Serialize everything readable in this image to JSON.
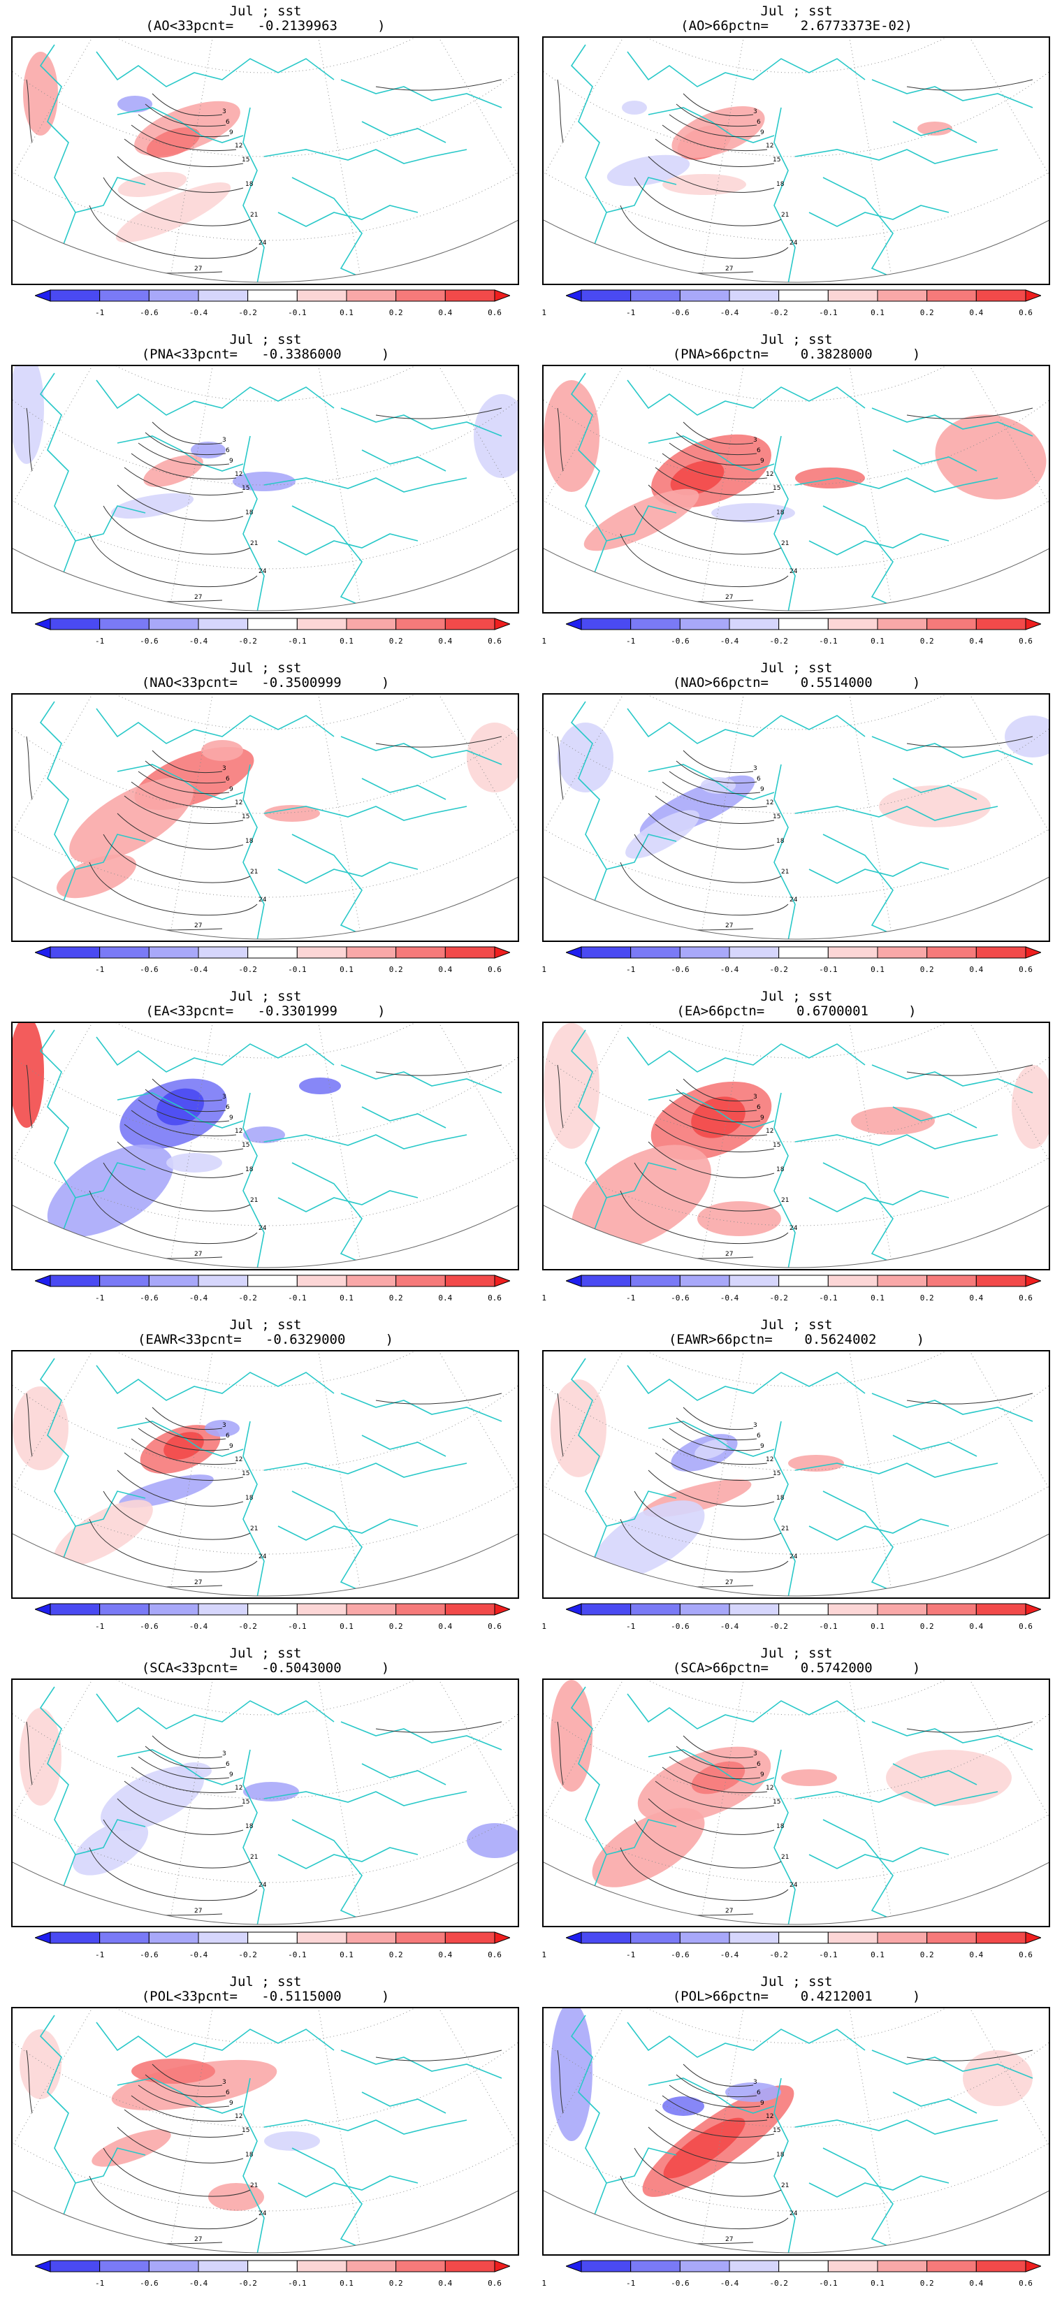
{
  "colorbar": {
    "labels": [
      "-1",
      "-0.6",
      "-0.4",
      "-0.2",
      "-0.1",
      "0.1",
      "0.2",
      "0.4",
      "0.6",
      "1"
    ],
    "colors": [
      "#1f1fef",
      "#4a4af2",
      "#7a7af6",
      "#a8a8f9",
      "#d6d6fc",
      "#ffffff",
      "#fcd6d6",
      "#f9a8a8",
      "#f67a7a",
      "#f24a4a",
      "#ef1f1f"
    ]
  },
  "contour_labels": [
    "3",
    "6",
    "9",
    "12",
    "15",
    "18",
    "21",
    "24",
    "27"
  ],
  "panels": [
    {
      "title": "Jul ; sst",
      "subtitle": "(AO<33pcnt=   -0.2139963     )",
      "pattern": "ao_lo"
    },
    {
      "title": "Jul ; sst",
      "subtitle": "(AO>66pctn=    2.6773373E-02)",
      "pattern": "ao_hi"
    },
    {
      "title": "Jul ; sst",
      "subtitle": "(PNA<33pcnt=   -0.3386000     )",
      "pattern": "pna_lo"
    },
    {
      "title": "Jul ; sst",
      "subtitle": "(PNA>66pctn=    0.3828000     )",
      "pattern": "pna_hi"
    },
    {
      "title": "Jul ; sst",
      "subtitle": "(NAO<33pcnt=   -0.3500999     )",
      "pattern": "nao_lo"
    },
    {
      "title": "Jul ; sst",
      "subtitle": "(NAO>66pctn=    0.5514000     )",
      "pattern": "nao_hi"
    },
    {
      "title": "Jul ; sst",
      "subtitle": "(EA<33pcnt=   -0.3301999     )",
      "pattern": "ea_lo"
    },
    {
      "title": "Jul ; sst",
      "subtitle": "(EA>66pctn=    0.6700001     )",
      "pattern": "ea_hi"
    },
    {
      "title": "Jul ; sst",
      "subtitle": "(EAWR<33pcnt=   -0.6329000     )",
      "pattern": "eawr_lo"
    },
    {
      "title": "Jul ; sst",
      "subtitle": "(EAWR>66pctn=    0.5624002     )",
      "pattern": "eawr_hi"
    },
    {
      "title": "Jul ; sst",
      "subtitle": "(SCA<33pcnt=   -0.5043000     )",
      "pattern": "sca_lo"
    },
    {
      "title": "Jul ; sst",
      "subtitle": "(SCA>66pctn=    0.5742000     )",
      "pattern": "sca_hi"
    },
    {
      "title": "Jul ; sst",
      "subtitle": "(POL<33pcnt=   -0.5115000     )",
      "pattern": "pol_lo"
    },
    {
      "title": "Jul ; sst",
      "subtitle": "(POL>66pctn=    0.4212001     )",
      "pattern": "pol_hi"
    }
  ]
}
